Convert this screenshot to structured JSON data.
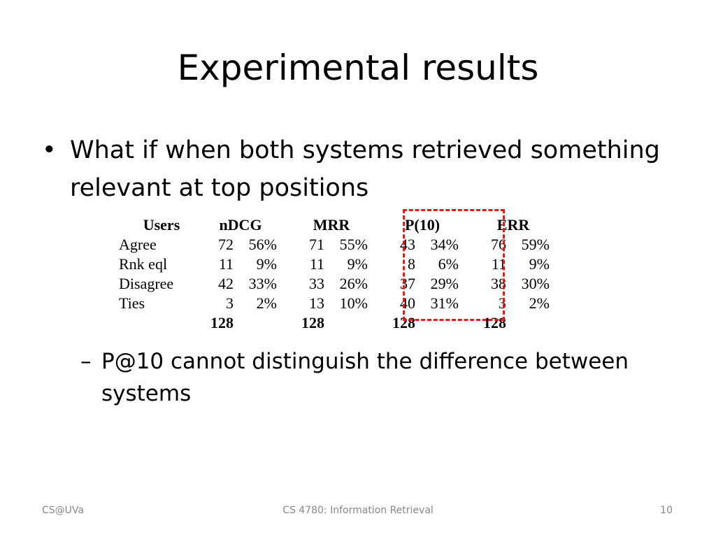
{
  "slide": {
    "title": "Experimental results",
    "bullet": {
      "marker": "•",
      "text": "What if when both systems retrieved something relevant at top positions"
    },
    "sub_bullet": {
      "marker": "–",
      "text": "P@10 cannot distinguish the difference between systems"
    },
    "footer": {
      "left": "CS@UVa",
      "center": "CS 4780: Information Retrieval",
      "page": "10"
    },
    "highlight_color": "#e01b1b"
  },
  "table": {
    "headers": [
      "Users",
      "nDCG",
      "MRR",
      "P(10)",
      "ERR"
    ],
    "rows": [
      {
        "label": "Agree",
        "ndcg_n": "72",
        "ndcg_p": "56%",
        "mrr_n": "71",
        "mrr_p": "55%",
        "p10_n": "43",
        "p10_p": "34%",
        "err_n": "76",
        "err_p": "59%"
      },
      {
        "label": "Rnk eql",
        "ndcg_n": "11",
        "ndcg_p": "9%",
        "mrr_n": "11",
        "mrr_p": "9%",
        "p10_n": "8",
        "p10_p": "6%",
        "err_n": "11",
        "err_p": "9%"
      },
      {
        "label": "Disagree",
        "ndcg_n": "42",
        "ndcg_p": "33%",
        "mrr_n": "33",
        "mrr_p": "26%",
        "p10_n": "37",
        "p10_p": "29%",
        "err_n": "38",
        "err_p": "30%"
      },
      {
        "label": "Ties",
        "ndcg_n": "3",
        "ndcg_p": "2%",
        "mrr_n": "13",
        "mrr_p": "10%",
        "p10_n": "40",
        "p10_p": "31%",
        "err_n": "3",
        "err_p": "2%"
      }
    ],
    "totals": {
      "ndcg": "128",
      "mrr": "128",
      "p10": "128",
      "err": "128"
    }
  }
}
